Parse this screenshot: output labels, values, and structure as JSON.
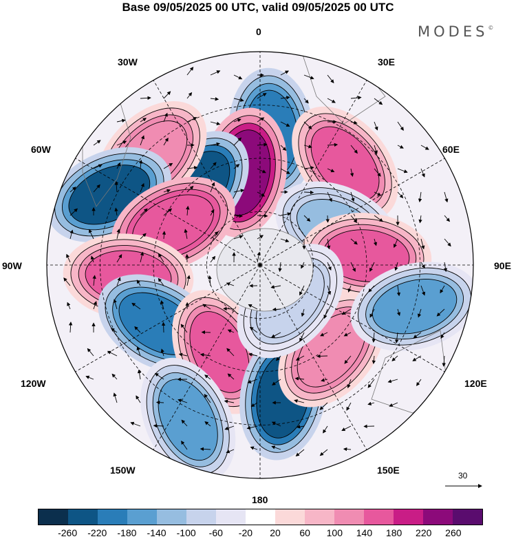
{
  "title": "Base 09/05/2025 00 UTC, valid 09/05/2025 00 UTC",
  "brand": "MODES",
  "brand_mark": "©",
  "longitude_labels": {
    "n0": "0",
    "e30": "30E",
    "e60": "60E",
    "e90": "90E",
    "e120": "120E",
    "e150": "150E",
    "s180": "180",
    "w150": "150W",
    "w120": "120W",
    "w90": "90W",
    "w60": "60W",
    "w30": "30W"
  },
  "reference_vector": "30",
  "colorbar": {
    "colors": [
      "#0b2f4d",
      "#0e5585",
      "#2a7db8",
      "#5a9fd1",
      "#96bde0",
      "#c7d3ec",
      "#e6e5f4",
      "#ffffff",
      "#fbd9d9",
      "#f7b6c7",
      "#f08cb2",
      "#e7589d",
      "#c91d86",
      "#8c0a7a",
      "#5a0c6e"
    ],
    "ticks": [
      "-260",
      "-220",
      "-180",
      "-140",
      "-100",
      "-60",
      "-20",
      "20",
      "60",
      "100",
      "140",
      "180",
      "220",
      "260"
    ]
  },
  "anomalies": [
    {
      "lon": 5,
      "r": 0.62,
      "v": -200
    },
    {
      "lon": -10,
      "r": 0.44,
      "v": 240
    },
    {
      "lon": 40,
      "r": 0.62,
      "v": 150
    },
    {
      "lon": -40,
      "r": 0.47,
      "v": -230
    },
    {
      "lon": -45,
      "r": 0.72,
      "v": 140
    },
    {
      "lon": -65,
      "r": 0.78,
      "v": -220
    },
    {
      "lon": -65,
      "r": 0.45,
      "v": 180
    },
    {
      "lon": -95,
      "r": 0.62,
      "v": 160
    },
    {
      "lon": -120,
      "r": 0.55,
      "v": -200
    },
    {
      "lon": -155,
      "r": 0.45,
      "v": 150
    },
    {
      "lon": -155,
      "r": 0.8,
      "v": -160
    },
    {
      "lon": 170,
      "r": 0.62,
      "v": -230
    },
    {
      "lon": 140,
      "r": 0.52,
      "v": 130
    },
    {
      "lon": 65,
      "r": 0.4,
      "v": -120
    },
    {
      "lon": 85,
      "r": 0.5,
      "v": 160
    },
    {
      "lon": 105,
      "r": 0.75,
      "v": -160
    },
    {
      "lon": 140,
      "r": 0.22,
      "v": -90
    }
  ]
}
